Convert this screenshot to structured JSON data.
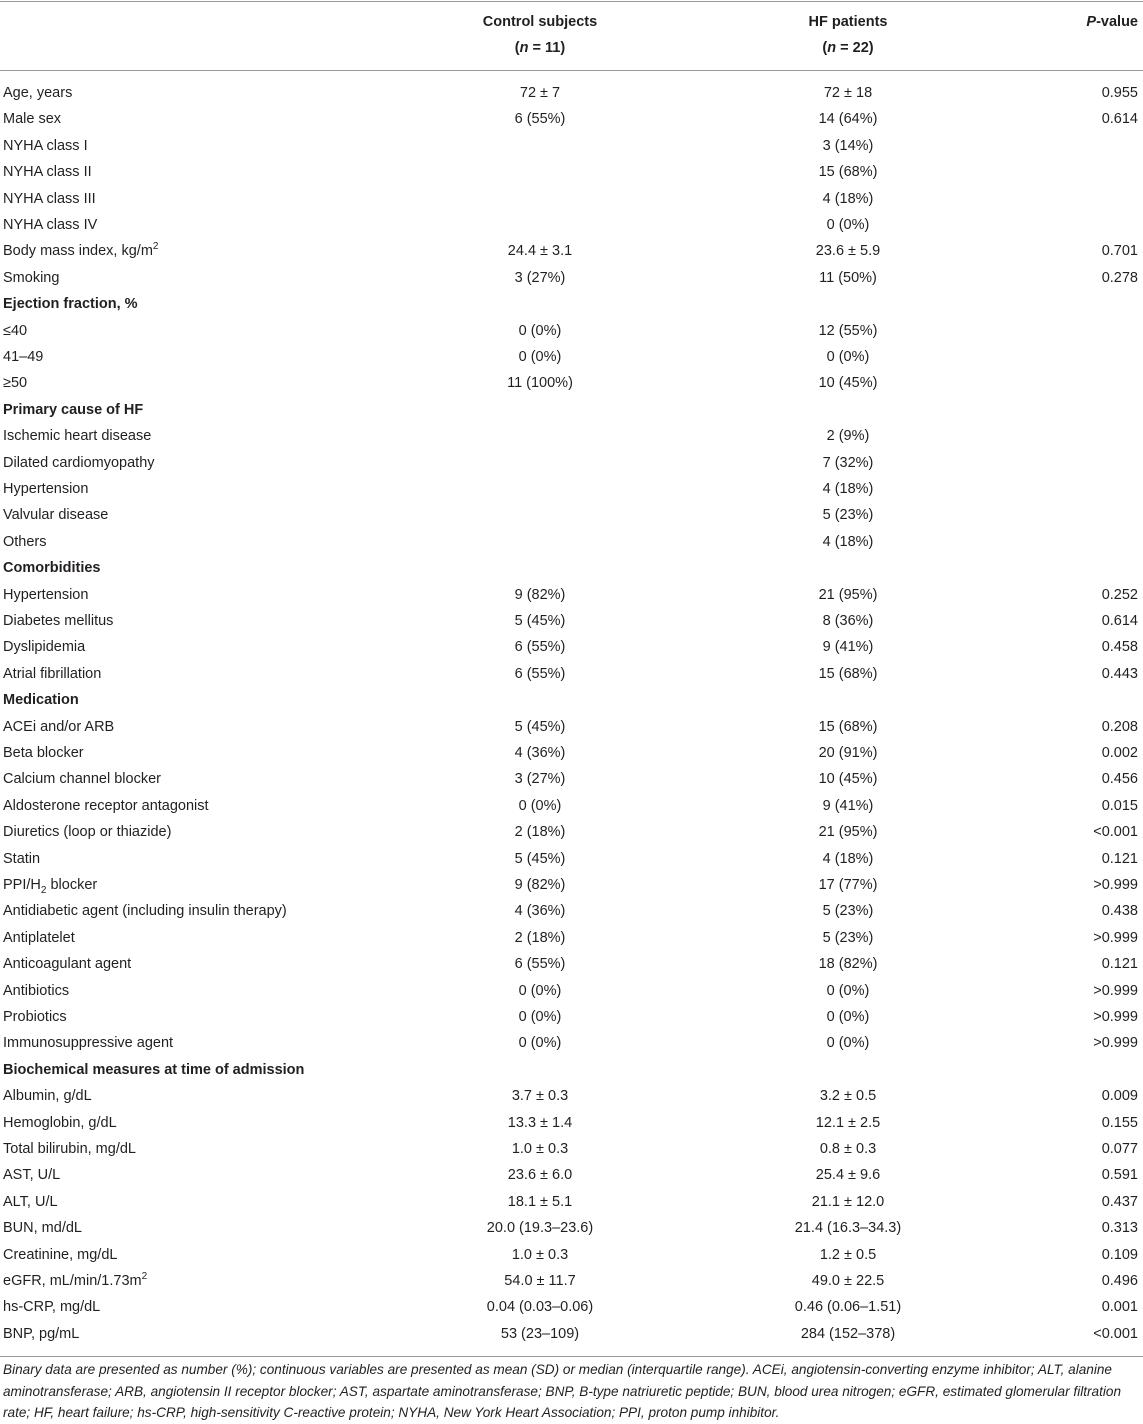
{
  "table": {
    "header": {
      "control": {
        "title": "Control subjects",
        "pre": "(",
        "italic": "n",
        "post": " = 11)"
      },
      "hf": {
        "title": "HF patients",
        "pre": "(",
        "italic": "n",
        "post": " = 22)"
      },
      "p": {
        "italic": "P",
        "post": "-value"
      }
    },
    "rows": [
      {
        "label": "Age, years",
        "control": "72 ± 7",
        "hf": "72 ± 18",
        "p": "0.955"
      },
      {
        "label": "Male sex",
        "control": "6 (55%)",
        "hf": "14 (64%)",
        "p": "0.614"
      },
      {
        "label": "NYHA class I",
        "hf": "3 (14%)"
      },
      {
        "label": "NYHA class II",
        "hf": "15 (68%)"
      },
      {
        "label": "NYHA class III",
        "hf": "4 (18%)"
      },
      {
        "label": "NYHA class IV",
        "hf": "0 (0%)"
      },
      {
        "label": {
          "text": "Body mass index, kg/m",
          "sup": "2"
        },
        "control": "24.4 ± 3.1",
        "hf": "23.6 ± 5.9",
        "p": "0.701"
      },
      {
        "label": "Smoking",
        "control": "3 (27%)",
        "hf": "11 (50%)",
        "p": "0.278"
      },
      {
        "heading": "Ejection fraction, %"
      },
      {
        "label": "≤40",
        "control": "0 (0%)",
        "hf": "12 (55%)"
      },
      {
        "label": "41–49",
        "control": "0 (0%)",
        "hf": "0 (0%)"
      },
      {
        "label": "≥50",
        "control": "11 (100%)",
        "hf": "10 (45%)"
      },
      {
        "heading": "Primary cause of HF"
      },
      {
        "label": "Ischemic heart disease",
        "hf": "2 (9%)"
      },
      {
        "label": "Dilated cardiomyopathy",
        "hf": "7 (32%)"
      },
      {
        "label": "Hypertension",
        "hf": "4 (18%)"
      },
      {
        "label": "Valvular disease",
        "hf": "5 (23%)"
      },
      {
        "label": "Others",
        "hf": "4 (18%)"
      },
      {
        "heading": "Comorbidities"
      },
      {
        "label": "Hypertension",
        "control": "9 (82%)",
        "hf": "21 (95%)",
        "p": "0.252"
      },
      {
        "label": "Diabetes mellitus",
        "control": "5 (45%)",
        "hf": "8 (36%)",
        "p": "0.614"
      },
      {
        "label": "Dyslipidemia",
        "control": "6 (55%)",
        "hf": "9 (41%)",
        "p": "0.458"
      },
      {
        "label": "Atrial fibrillation",
        "control": "6 (55%)",
        "hf": "15 (68%)",
        "p": "0.443"
      },
      {
        "heading": "Medication"
      },
      {
        "label": "ACEi and/or ARB",
        "control": "5 (45%)",
        "hf": "15 (68%)",
        "p": "0.208"
      },
      {
        "label": "Beta blocker",
        "control": "4 (36%)",
        "hf": "20 (91%)",
        "p": "0.002"
      },
      {
        "label": "Calcium channel blocker",
        "control": "3 (27%)",
        "hf": "10 (45%)",
        "p": "0.456"
      },
      {
        "label": "Aldosterone receptor antagonist",
        "control": "0 (0%)",
        "hf": "9 (41%)",
        "p": "0.015"
      },
      {
        "label": "Diuretics (loop or thiazide)",
        "control": "2 (18%)",
        "hf": "21 (95%)",
        "p": "<0.001"
      },
      {
        "label": "Statin",
        "control": "5 (45%)",
        "hf": "4 (18%)",
        "p": "0.121"
      },
      {
        "label": {
          "text": "PPI/H",
          "sub": "2",
          "post": " blocker"
        },
        "control": "9 (82%)",
        "hf": "17 (77%)",
        "p": ">0.999"
      },
      {
        "label": "Antidiabetic agent (including insulin therapy)",
        "control": "4 (36%)",
        "hf": "5 (23%)",
        "p": "0.438"
      },
      {
        "label": "Antiplatelet",
        "control": "2 (18%)",
        "hf": "5 (23%)",
        "p": ">0.999"
      },
      {
        "label": "Anticoagulant agent",
        "control": "6 (55%)",
        "hf": "18 (82%)",
        "p": "0.121"
      },
      {
        "label": "Antibiotics",
        "control": "0 (0%)",
        "hf": "0 (0%)",
        "p": ">0.999"
      },
      {
        "label": "Probiotics",
        "control": "0 (0%)",
        "hf": "0 (0%)",
        "p": ">0.999"
      },
      {
        "label": "Immunosuppressive agent",
        "control": "0 (0%)",
        "hf": "0 (0%)",
        "p": ">0.999"
      },
      {
        "heading": "Biochemical measures at time of admission"
      },
      {
        "label": "Albumin, g/dL",
        "control": "3.7 ± 0.3",
        "hf": "3.2 ± 0.5",
        "p": "0.009"
      },
      {
        "label": "Hemoglobin, g/dL",
        "control": "13.3 ± 1.4",
        "hf": "12.1 ± 2.5",
        "p": "0.155"
      },
      {
        "label": "Total bilirubin, mg/dL",
        "control": "1.0 ± 0.3",
        "hf": "0.8 ± 0.3",
        "p": "0.077"
      },
      {
        "label": "AST, U/L",
        "control": "23.6 ± 6.0",
        "hf": "25.4 ± 9.6",
        "p": "0.591"
      },
      {
        "label": "ALT, U/L",
        "control": "18.1 ± 5.1",
        "hf": "21.1 ± 12.0",
        "p": "0.437"
      },
      {
        "label": "BUN, md/dL",
        "control": "20.0 (19.3–23.6)",
        "hf": "21.4 (16.3–34.3)",
        "p": "0.313"
      },
      {
        "label": "Creatinine, mg/dL",
        "control": "1.0 ± 0.3",
        "hf": "1.2 ± 0.5",
        "p": "0.109"
      },
      {
        "label": {
          "text": "eGFR, mL/min/1.73m",
          "sup": "2"
        },
        "control": "54.0 ± 11.7",
        "hf": "49.0 ± 22.5",
        "p": "0.496"
      },
      {
        "label": "hs-CRP, mg/dL",
        "control": "0.04 (0.03–0.06)",
        "hf": "0.46 (0.06–1.51)",
        "p": "0.001"
      },
      {
        "label": "BNP, pg/mL",
        "control": "53 (23–109)",
        "hf": "284 (152–378)",
        "p": "<0.001"
      }
    ],
    "footnote": "Binary data are presented as number (%); continuous variables are presented as mean (SD) or median (interquartile range). ACEi, angiotensin-converting enzyme inhibitor; ALT, alanine aminotransferase; ARB, angiotensin II receptor blocker; AST, aspartate aminotransferase; BNP, B-type natriuretic peptide; BUN, blood urea nitrogen; eGFR, estimated glomerular filtration rate; HF, heart failure; hs-CRP, high-sensitivity C-reactive protein; NYHA, New York Heart Association; PPI, proton pump inhibitor."
  }
}
